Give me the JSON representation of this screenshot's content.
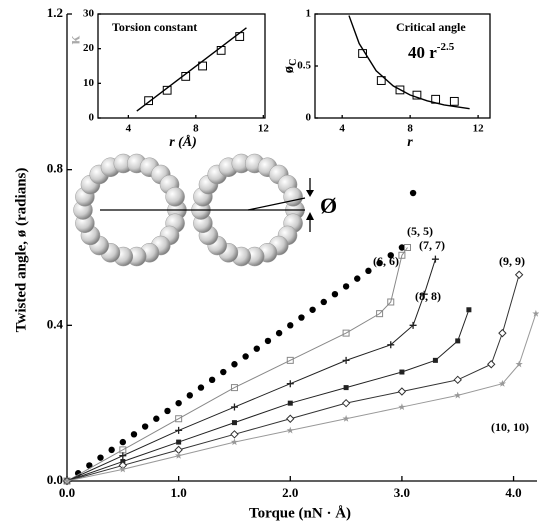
{
  "chart_data": [
    {
      "type": "line",
      "xlabel": "Torque (nN · Å)",
      "ylabel": "Twisted angle, ø (radians)",
      "illustration_label": "Ø",
      "xlim": [
        0,
        4.21
      ],
      "ylim": [
        0,
        1.2
      ],
      "xticks": [
        {
          "value": 0,
          "label": "0.0"
        },
        {
          "value": 1,
          "label": "1.0"
        },
        {
          "value": 2,
          "label": "2.0"
        },
        {
          "value": 3,
          "label": "3.0"
        },
        {
          "value": 4,
          "label": "4.0"
        }
      ],
      "yticks": [
        {
          "value": 0,
          "label": "0.0"
        },
        0.4,
        0.8,
        1.2
      ],
      "series": [
        {
          "name": "(5, 5)",
          "color": "#000000",
          "marker": "dot",
          "line": false,
          "x": [
            0,
            0.1,
            0.2,
            0.3,
            0.4,
            0.5,
            0.6,
            0.7,
            0.8,
            0.9,
            1.0,
            1.1,
            1.2,
            1.3,
            1.4,
            1.5,
            1.6,
            1.7,
            1.8,
            1.9,
            2.0,
            2.1,
            2.2,
            2.3,
            2.4,
            2.5,
            2.6,
            2.7,
            2.8,
            2.9,
            3.0,
            3.1
          ],
          "values": [
            0,
            0.02,
            0.04,
            0.06,
            0.08,
            0.1,
            0.12,
            0.14,
            0.16,
            0.18,
            0.2,
            0.22,
            0.24,
            0.26,
            0.28,
            0.3,
            0.32,
            0.34,
            0.36,
            0.38,
            0.4,
            0.42,
            0.44,
            0.46,
            0.48,
            0.5,
            0.52,
            0.54,
            0.56,
            0.58,
            0.6,
            0.74
          ]
        },
        {
          "name": "(6, 6)",
          "color": "#888888",
          "marker": "square",
          "line": true,
          "x": [
            0,
            0.5,
            1.0,
            1.5,
            2.0,
            2.5,
            2.8,
            2.9,
            3.0,
            3.05
          ],
          "values": [
            0,
            0.08,
            0.16,
            0.24,
            0.31,
            0.38,
            0.43,
            0.46,
            0.58,
            0.6
          ]
        },
        {
          "name": "(7, 7)",
          "color": "#222222",
          "marker": "plus",
          "line": true,
          "x": [
            0,
            0.5,
            1.0,
            1.5,
            2.0,
            2.5,
            2.9,
            3.1,
            3.2,
            3.3
          ],
          "values": [
            0,
            0.065,
            0.13,
            0.19,
            0.25,
            0.31,
            0.35,
            0.4,
            0.48,
            0.57
          ]
        },
        {
          "name": "(8, 8)",
          "color": "#222222",
          "marker": "fsquare",
          "line": true,
          "x": [
            0,
            0.5,
            1.0,
            1.5,
            2.0,
            2.5,
            3.0,
            3.3,
            3.5,
            3.6
          ],
          "values": [
            0,
            0.05,
            0.1,
            0.15,
            0.2,
            0.24,
            0.28,
            0.31,
            0.36,
            0.44
          ]
        },
        {
          "name": "(9, 9)",
          "color": "#333333",
          "marker": "diamond",
          "line": true,
          "x": [
            0,
            0.5,
            1.0,
            1.5,
            2.0,
            2.5,
            3.0,
            3.5,
            3.8,
            3.9,
            4.05
          ],
          "values": [
            0,
            0.04,
            0.08,
            0.12,
            0.16,
            0.2,
            0.23,
            0.26,
            0.3,
            0.38,
            0.53
          ]
        },
        {
          "name": "(10, 10)",
          "color": "#999999",
          "marker": "star",
          "line": true,
          "x": [
            0,
            0.5,
            1.0,
            1.5,
            2.0,
            2.5,
            3.0,
            3.5,
            3.9,
            4.05,
            4.2
          ],
          "values": [
            0,
            0.03,
            0.065,
            0.1,
            0.13,
            0.16,
            0.19,
            0.22,
            0.25,
            0.3,
            0.43
          ]
        }
      ]
    },
    {
      "type": "scatter",
      "title": "Torsion constant",
      "xlabel": "r (Å)",
      "ylabel": "κ",
      "xlim": [
        2.2,
        12.1
      ],
      "ylim": [
        0,
        30
      ],
      "xticks": [
        4,
        8,
        12
      ],
      "yticks": [
        0,
        10,
        20,
        30
      ],
      "series": [
        {
          "color": "#000000",
          "marker": "square",
          "line": false,
          "x": [
            5.2,
            6.3,
            7.4,
            8.4,
            9.5,
            10.6
          ],
          "values": [
            5,
            8,
            12,
            15,
            19.5,
            23.5
          ]
        }
      ],
      "fit": {
        "x": [
          4.5,
          11
        ],
        "values": [
          2,
          26
        ]
      }
    },
    {
      "type": "scatter",
      "title": "Critical angle",
      "xlabel": "r",
      "ylabel": "ø",
      "ylabel_subscript": "C",
      "formula": "40 r",
      "formula_exponent": "-2.5",
      "xlim": [
        2.4,
        12.7
      ],
      "ylim": [
        0,
        1
      ],
      "xticks": [
        4,
        8,
        12
      ],
      "yticks": [
        0,
        0.5,
        1
      ],
      "series": [
        {
          "color": "#000000",
          "marker": "square",
          "line": false,
          "x": [
            5.2,
            6.3,
            7.4,
            8.4,
            9.5,
            10.6
          ],
          "values": [
            0.62,
            0.36,
            0.27,
            0.22,
            0.18,
            0.16
          ]
        }
      ],
      "fit": {
        "x": [
          4.4,
          5,
          6,
          7,
          8,
          9,
          10,
          11.5
        ],
        "values": [
          0.985,
          0.716,
          0.454,
          0.309,
          0.221,
          0.165,
          0.126,
          0.089
        ]
      }
    }
  ]
}
